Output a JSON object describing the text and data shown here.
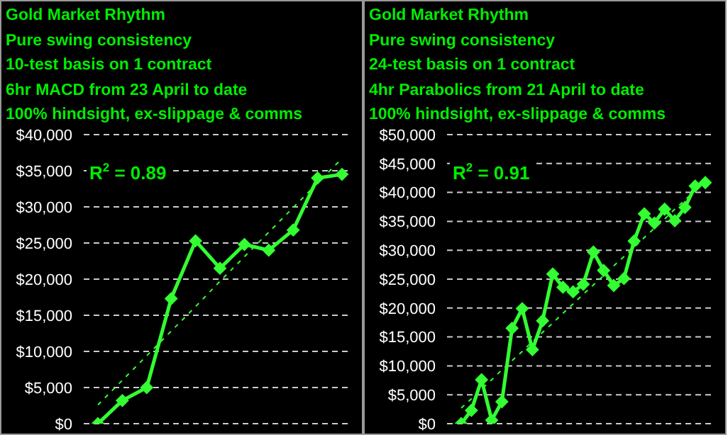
{
  "chart_data": [
    {
      "type": "line",
      "title": "Gold Market Rhythm",
      "subtitle": "Pure swing consistency",
      "annotations": [
        "10-test basis on 1 contract",
        "6hr MACD from 23 April to date",
        "100% hindsight, ex-slippage & comms",
        "R$^{2}$ = 0.89"
      ],
      "categories": [
        null,
        null,
        null,
        null,
        null,
        null,
        null,
        null,
        null,
        null,
        null
      ],
      "series": [
        {
          "color": "#33ff33",
          "values": [
            0,
            3200,
            5000,
            17300,
            25300,
            21500,
            24800,
            24000,
            26800,
            34000,
            34500
          ],
          "marker": "diamond",
          "line_style": "solid"
        },
        {
          "color": "#33ff33",
          "values": [
            2600,
            6000,
            9400,
            12800,
            16200,
            19700,
            23100,
            26500,
            29900,
            33300,
            36700
          ],
          "marker": "none",
          "line_style": "dashed"
        }
      ],
      "ylim": [
        0,
        40000
      ],
      "yticks": [
        {
          "value": 0,
          "label": "$0"
        },
        {
          "value": 5000,
          "label": "$5,000"
        },
        {
          "value": 10000,
          "label": "$10,000"
        },
        {
          "value": 15000,
          "label": "$15,000"
        },
        {
          "value": 20000,
          "label": "$20,000"
        },
        {
          "value": 25000,
          "label": "$25,000"
        },
        {
          "value": 30000,
          "label": "$30,000"
        },
        {
          "value": 35000,
          "label": "$35,000"
        },
        {
          "value": 40000,
          "label": "$40,000"
        }
      ],
      "tick_labels": "y",
      "grid": "y",
      "legend": false
    },
    {
      "type": "line",
      "title": "Gold Market Rhythm",
      "subtitle": "Pure swing consistency",
      "annotations": [
        "24-test basis on 1 contract",
        "4hr Parabolics from 21 April to date",
        "100% hindsight, ex-slippage & comms",
        "R$^{2}$ = 0.91"
      ],
      "categories": [
        null,
        null,
        null,
        null,
        null,
        null,
        null,
        null,
        null,
        null,
        null,
        null,
        null,
        null,
        null,
        null,
        null,
        null,
        null,
        null,
        null,
        null,
        null,
        null,
        null
      ],
      "series": [
        {
          "color": "#33ff33",
          "values": [
            0,
            2300,
            7600,
            600,
            3800,
            16500,
            19900,
            12800,
            17800,
            25900,
            23600,
            22800,
            24100,
            29700,
            26500,
            23900,
            25100,
            31600,
            36300,
            34700,
            37100,
            35100,
            37400,
            41100,
            41700
          ],
          "marker": "diamond",
          "line_style": "solid"
        },
        {
          "color": "#33ff33",
          "values": [
            2700,
            4300,
            6000,
            7600,
            9300,
            10900,
            12500,
            14200,
            15800,
            17400,
            19100,
            20700,
            22400,
            24000,
            25600,
            27300,
            28900,
            30500,
            32200,
            33800,
            35400,
            37100,
            38700,
            40300,
            42000
          ],
          "marker": "none",
          "line_style": "dashed"
        }
      ],
      "ylim": [
        0,
        50000
      ],
      "yticks": [
        {
          "value": 0,
          "label": "$0"
        },
        {
          "value": 5000,
          "label": "$5,000"
        },
        {
          "value": 10000,
          "label": "$10,000"
        },
        {
          "value": 15000,
          "label": "$15,000"
        },
        {
          "value": 20000,
          "label": "$20,000"
        },
        {
          "value": 25000,
          "label": "$25,000"
        },
        {
          "value": 30000,
          "label": "$30,000"
        },
        {
          "value": 35000,
          "label": "$35,000"
        },
        {
          "value": 40000,
          "label": "$40,000"
        },
        {
          "value": 45000,
          "label": "$45,000"
        },
        {
          "value": 50000,
          "label": "$50,000"
        }
      ],
      "tick_labels": "y",
      "grid": "y",
      "legend": false
    }
  ]
}
